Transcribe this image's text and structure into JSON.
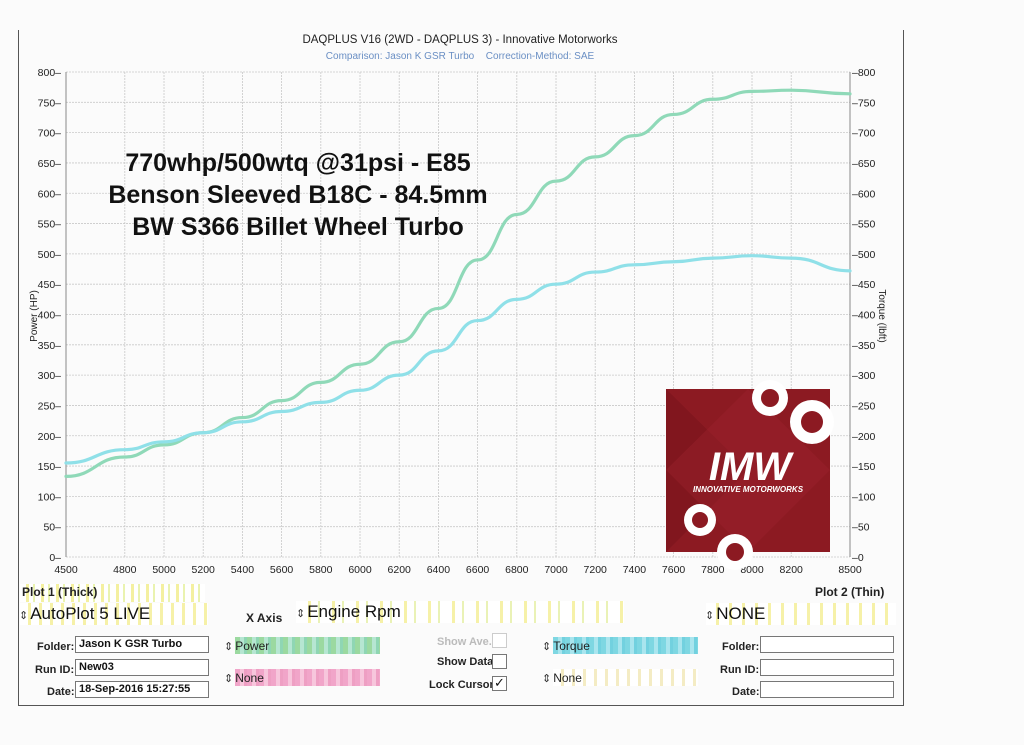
{
  "header": {
    "title": "DAQPLUS V16 (2WD - DAQPLUS 3) - Innovative Motorworks",
    "comparison": "Comparison: Jason K GSR Turbo",
    "correction": "Correction-Method: SAE"
  },
  "annotation": {
    "line1": "770whp/500wtq @31psi - E85",
    "line2": "Benson Sleeved B18C - 84.5mm",
    "line3": "BW S366 Billet Wheel Turbo"
  },
  "logo": {
    "text": "IMW",
    "subtext": "INNOVATIVE MOTORWORKS",
    "bg": "#8c1a22"
  },
  "chart_data": {
    "type": "line",
    "xlim": [
      4500,
      8500
    ],
    "ylim_left": [
      0,
      800
    ],
    "ylim_right": [
      0,
      800
    ],
    "xticks": [
      "4500",
      "4800",
      "5000",
      "5200",
      "5400",
      "5600",
      "5800",
      "6000",
      "6200",
      "6400",
      "6600",
      "6800",
      "7000",
      "7200",
      "7400",
      "7600",
      "7800",
      "8000",
      "8200",
      "8500"
    ],
    "xtick_values": [
      4500,
      4800,
      5000,
      5200,
      5400,
      5600,
      5800,
      6000,
      6200,
      6400,
      6600,
      6800,
      7000,
      7200,
      7400,
      7600,
      7800,
      8000,
      8200,
      8500
    ],
    "yticks_left": [
      "0",
      "50",
      "100",
      "150",
      "200",
      "250",
      "300",
      "350",
      "400",
      "450",
      "500",
      "550",
      "600",
      "650",
      "700",
      "750",
      "800"
    ],
    "yticks_right": [
      "0",
      "50",
      "100",
      "150",
      "200",
      "250",
      "300",
      "350",
      "400",
      "450",
      "500",
      "550",
      "600",
      "650",
      "700",
      "750",
      "800"
    ],
    "ytick_values": [
      0,
      50,
      100,
      150,
      200,
      250,
      300,
      350,
      400,
      450,
      500,
      550,
      600,
      650,
      700,
      750,
      800
    ],
    "ylabel_left": "Power (HP)",
    "ylabel_right": "Torque (lbft)",
    "grid": true,
    "series": [
      {
        "name": "Power",
        "color": "#8fd9b8",
        "width": 3.2,
        "x": [
          4500,
          4800,
          5000,
          5200,
          5400,
          5600,
          5800,
          6000,
          6200,
          6400,
          6600,
          6800,
          7000,
          7200,
          7400,
          7600,
          7800,
          8000,
          8200,
          8500
        ],
        "y": [
          133,
          165,
          185,
          205,
          230,
          258,
          288,
          318,
          355,
          410,
          490,
          565,
          620,
          660,
          695,
          730,
          755,
          768,
          770,
          764
        ]
      },
      {
        "name": "Torque",
        "color": "#8fe0e8",
        "width": 3.2,
        "x": [
          4500,
          4800,
          5000,
          5200,
          5400,
          5600,
          5800,
          6000,
          6200,
          6400,
          6600,
          6800,
          7000,
          7200,
          7400,
          7600,
          7800,
          8000,
          8200,
          8500
        ],
        "y": [
          155,
          177,
          190,
          205,
          223,
          240,
          255,
          275,
          300,
          340,
          390,
          425,
          450,
          470,
          482,
          487,
          493,
          497,
          493,
          472
        ]
      }
    ]
  },
  "controls": {
    "plot1_label": "Plot 1 (Thick)",
    "plot2_label": "Plot 2 (Thin)",
    "plot1_value": "AutoPlot 5 LIVE",
    "xaxis_label": "X Axis",
    "xaxis_value": "Engine Rpm",
    "plot2_value": "NONE",
    "folder_label": "Folder:",
    "folder_value": "Jason K GSR Turbo",
    "runid_label": "Run ID:",
    "runid_value": "New03",
    "date_label": "Date:",
    "date_value": "18-Sep-2016 15:27:55",
    "ch1": "Power",
    "ch2": "None",
    "ch3": "Torque",
    "ch4": "None",
    "show_ave": "Show Ave.",
    "show_data": "Show Data",
    "lock_cursor": "Lock Cursor",
    "folder2_label": "Folder:",
    "runid2_label": "Run ID:",
    "date2_label": "Date:"
  }
}
